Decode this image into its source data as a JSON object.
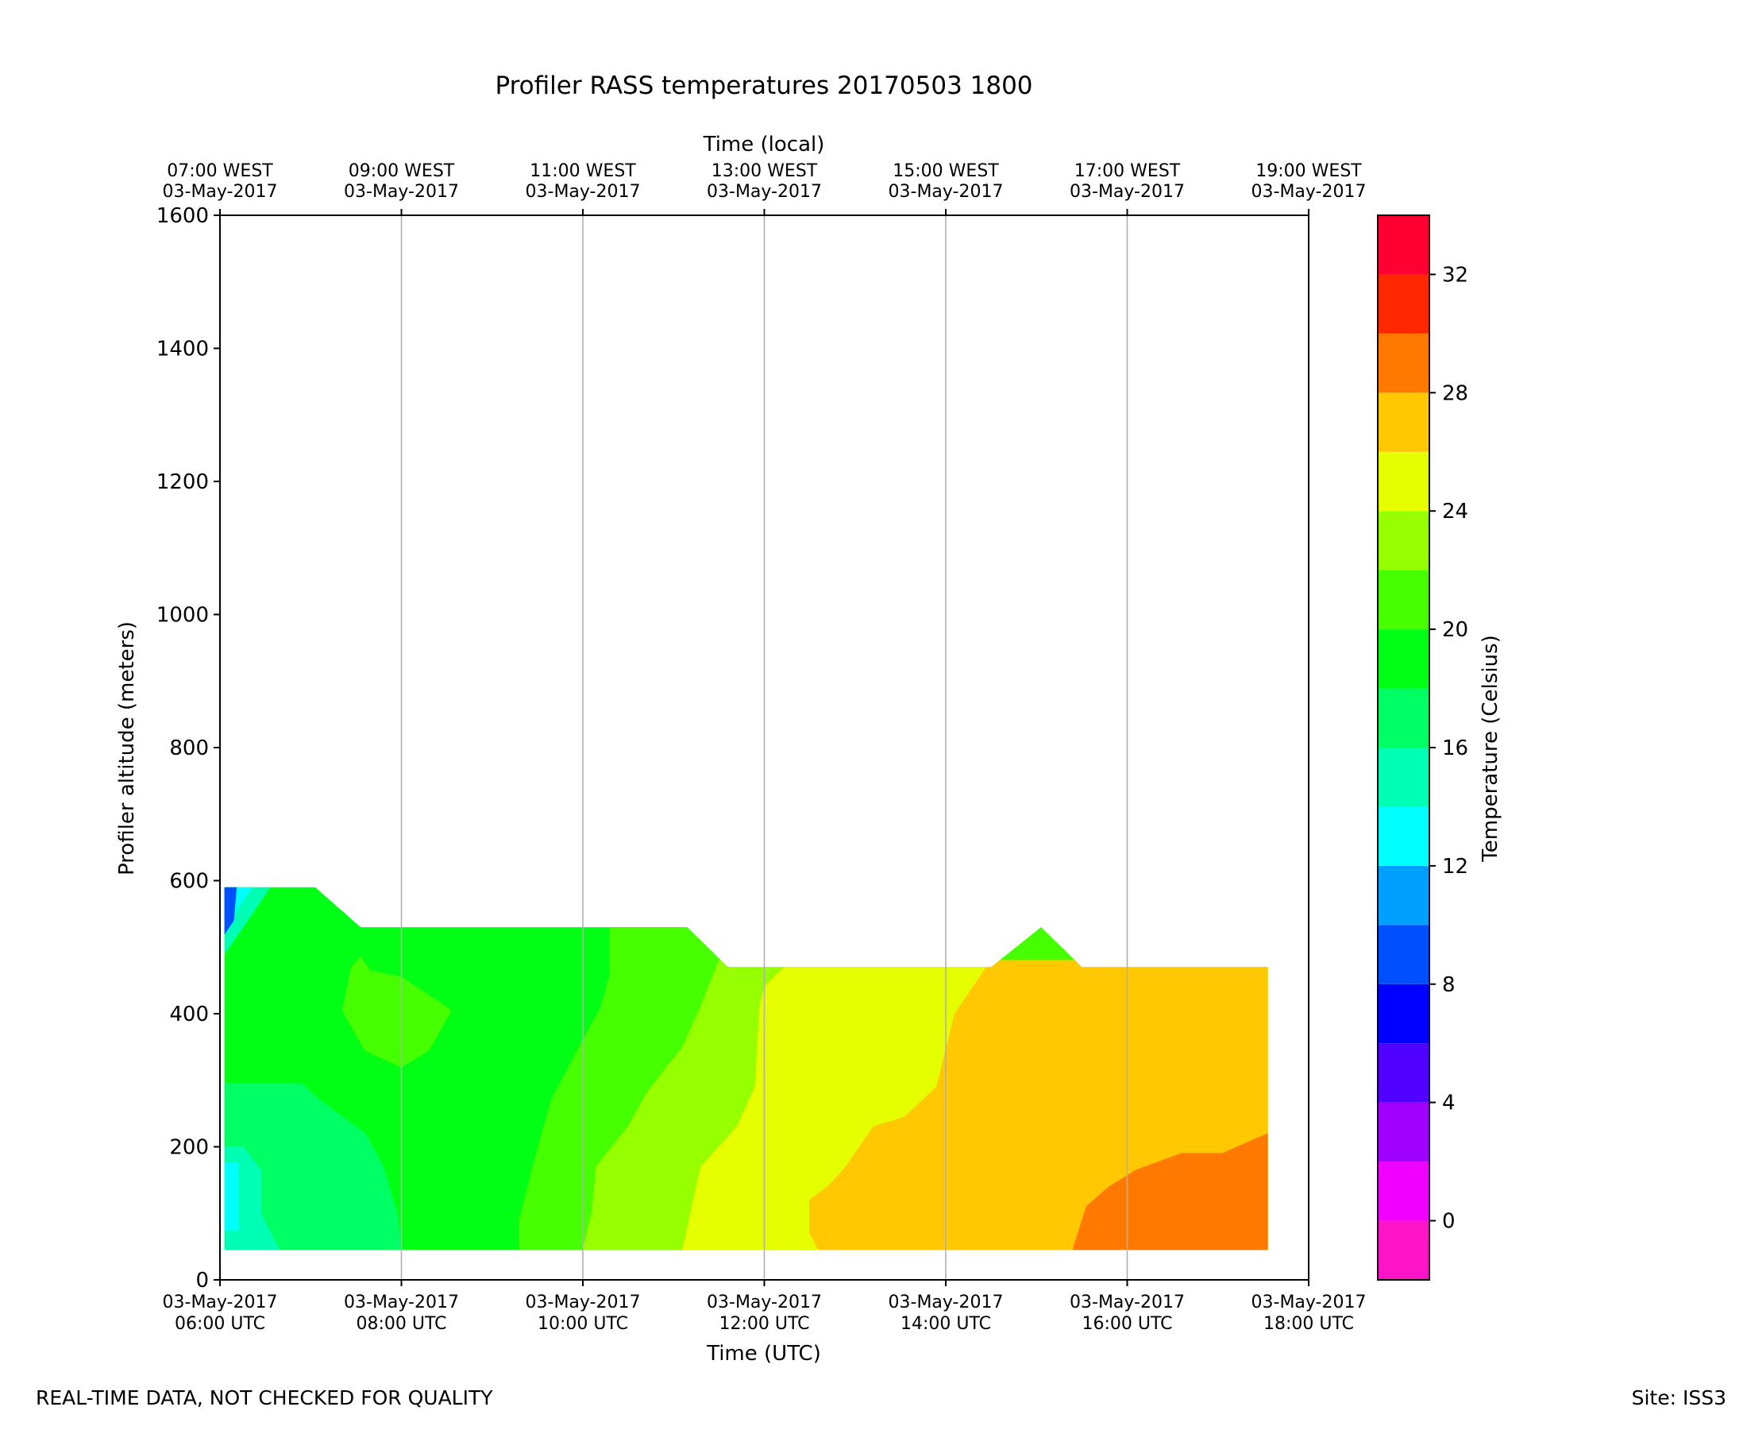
{
  "chart_data": {
    "type": "contour",
    "title": "Profiler RASS temperatures 20170503 1800",
    "xlabel": "Time (UTC)",
    "xlabel_top": "Time (local)",
    "ylabel": "Profiler altitude (meters)",
    "colorbar_label": "Temperature (Celsius)",
    "x_range_hours_utc": [
      6,
      18
    ],
    "ylim": [
      0,
      1600
    ],
    "y_ticks": [
      0,
      200,
      400,
      600,
      800,
      1000,
      1200,
      1400,
      1600
    ],
    "y_tick_labels": [
      "0",
      "200",
      "400",
      "600",
      "800",
      "1000",
      "1200",
      "1400",
      "1600"
    ],
    "x_ticks_hours": [
      6,
      8,
      10,
      12,
      14,
      16,
      18
    ],
    "x_tick_labels_bottom": [
      {
        "date": "03-May-2017",
        "time": "06:00 UTC"
      },
      {
        "date": "03-May-2017",
        "time": "08:00 UTC"
      },
      {
        "date": "03-May-2017",
        "time": "10:00 UTC"
      },
      {
        "date": "03-May-2017",
        "time": "12:00 UTC"
      },
      {
        "date": "03-May-2017",
        "time": "14:00 UTC"
      },
      {
        "date": "03-May-2017",
        "time": "16:00 UTC"
      },
      {
        "date": "03-May-2017",
        "time": "18:00 UTC"
      }
    ],
    "x_tick_labels_top": [
      {
        "time": "07:00 WEST",
        "date": "03-May-2017"
      },
      {
        "time": "09:00 WEST",
        "date": "03-May-2017"
      },
      {
        "time": "11:00 WEST",
        "date": "03-May-2017"
      },
      {
        "time": "13:00 WEST",
        "date": "03-May-2017"
      },
      {
        "time": "15:00 WEST",
        "date": "03-May-2017"
      },
      {
        "time": "17:00 WEST",
        "date": "03-May-2017"
      },
      {
        "time": "19:00 WEST",
        "date": "03-May-2017"
      }
    ],
    "grid": "vertical",
    "colorbar": {
      "vmin": -2,
      "vmax": 34,
      "step": 2,
      "colors": [
        "#ff14c8",
        "#f000ff",
        "#a000ff",
        "#5000ff",
        "#0000ff",
        "#0050ff",
        "#00a0ff",
        "#00ffff",
        "#00ffb4",
        "#00ff64",
        "#00ff14",
        "#46ff00",
        "#96ff00",
        "#e6ff00",
        "#ffc800",
        "#ff7800",
        "#ff2800",
        "#ff0032"
      ],
      "ticks": [
        0,
        4,
        8,
        12,
        16,
        20,
        24,
        28,
        32
      ],
      "tick_labels": [
        "0",
        "4",
        "8",
        "12",
        "16",
        "20",
        "24",
        "28",
        "32"
      ]
    },
    "regions": [
      {
        "temp_range": [
          18,
          20
        ],
        "color": "#00ff14",
        "polygon": [
          [
            6.05,
            45
          ],
          [
            18.45,
            45
          ],
          [
            18.45,
            590
          ],
          [
            6.05,
            590
          ]
        ]
      },
      {
        "temp_range": [
          16,
          18
        ],
        "color": "#00ff64",
        "polygon": [
          [
            6.05,
            45
          ],
          [
            8.0,
            45
          ],
          [
            7.95,
            100
          ],
          [
            7.8,
            170
          ],
          [
            7.6,
            220
          ],
          [
            7.3,
            250
          ],
          [
            7.1,
            270
          ],
          [
            6.9,
            295
          ],
          [
            6.05,
            295
          ]
        ]
      },
      {
        "temp_range": [
          14,
          16
        ],
        "color": "#00ffb4",
        "polygon": [
          [
            6.05,
            45
          ],
          [
            6.65,
            45
          ],
          [
            6.45,
            100
          ],
          [
            6.45,
            165
          ],
          [
            6.25,
            200
          ],
          [
            6.05,
            200
          ]
        ]
      },
      {
        "temp_range": [
          12,
          14
        ],
        "color": "#00ffff",
        "polygon": [
          [
            6.05,
            75
          ],
          [
            6.2,
            75
          ],
          [
            6.2,
            175
          ],
          [
            6.05,
            175
          ]
        ]
      },
      {
        "temp_range": [
          14,
          16
        ],
        "color": "#00ffb4",
        "polygon": [
          [
            6.05,
            490
          ],
          [
            6.3,
            540
          ],
          [
            6.55,
            590
          ],
          [
            6.05,
            590
          ]
        ]
      },
      {
        "temp_range": [
          12,
          14
        ],
        "color": "#00ffff",
        "polygon": [
          [
            6.05,
            520
          ],
          [
            6.2,
            560
          ],
          [
            6.35,
            590
          ],
          [
            6.05,
            590
          ]
        ]
      },
      {
        "temp_range": [
          10,
          12
        ],
        "color": "#00a0ff",
        "polygon": [
          [
            6.05,
            545
          ],
          [
            6.18,
            590
          ],
          [
            6.05,
            590
          ]
        ]
      },
      {
        "temp_range": [
          8,
          10
        ],
        "color": "#0050ff",
        "polygon": [
          [
            6.05,
            520
          ],
          [
            6.15,
            540
          ],
          [
            6.18,
            590
          ],
          [
            6.05,
            590
          ]
        ]
      },
      {
        "temp_range": [
          20,
          22
        ],
        "color": "#46ff00",
        "polygon": [
          [
            7.35,
            405
          ],
          [
            7.45,
            470
          ],
          [
            7.55,
            485
          ],
          [
            7.65,
            465
          ],
          [
            8.0,
            455
          ],
          [
            8.55,
            405
          ],
          [
            8.3,
            345
          ],
          [
            8.0,
            320
          ],
          [
            7.6,
            345
          ]
        ]
      },
      {
        "temp_range": [
          20,
          22
        ],
        "color": "#46ff00",
        "polygon": [
          [
            9.3,
            45
          ],
          [
            18.45,
            45
          ],
          [
            18.45,
            530
          ],
          [
            10.3,
            530
          ],
          [
            10.3,
            460
          ],
          [
            10.2,
            410
          ],
          [
            10.0,
            360
          ],
          [
            9.65,
            270
          ],
          [
            9.45,
            170
          ],
          [
            9.3,
            90
          ]
        ]
      },
      {
        "temp_range": [
          22,
          24
        ],
        "color": "#96ff00",
        "polygon": [
          [
            10.0,
            45
          ],
          [
            18.45,
            45
          ],
          [
            18.45,
            480
          ],
          [
            11.5,
            480
          ],
          [
            11.3,
            410
          ],
          [
            11.1,
            350
          ],
          [
            10.7,
            280
          ],
          [
            10.5,
            230
          ],
          [
            10.15,
            170
          ],
          [
            10.1,
            100
          ]
        ]
      },
      {
        "temp_range": [
          24,
          26
        ],
        "color": "#e6ff00",
        "polygon": [
          [
            11.1,
            45
          ],
          [
            18.45,
            45
          ],
          [
            18.45,
            480
          ],
          [
            12.3,
            480
          ],
          [
            12.0,
            440
          ],
          [
            11.95,
            410
          ],
          [
            11.9,
            290
          ],
          [
            11.7,
            230
          ],
          [
            11.5,
            200
          ],
          [
            11.3,
            170
          ]
        ]
      },
      {
        "temp_range": [
          26,
          28
        ],
        "color": "#ffc800",
        "polygon": [
          [
            12.6,
            45
          ],
          [
            18.45,
            45
          ],
          [
            18.45,
            480
          ],
          [
            14.5,
            480
          ],
          [
            14.3,
            440
          ],
          [
            14.1,
            400
          ],
          [
            13.9,
            290
          ],
          [
            13.55,
            245
          ],
          [
            13.2,
            230
          ],
          [
            12.9,
            170
          ],
          [
            12.7,
            140
          ],
          [
            12.5,
            120
          ],
          [
            12.5,
            70
          ]
        ]
      },
      {
        "temp_range": [
          28,
          30
        ],
        "color": "#ff7800",
        "polygon": [
          [
            15.4,
            45
          ],
          [
            17.55,
            45
          ],
          [
            17.55,
            220
          ],
          [
            17.05,
            190
          ],
          [
            16.6,
            190
          ],
          [
            16.1,
            165
          ],
          [
            15.8,
            140
          ],
          [
            15.55,
            110
          ]
        ]
      }
    ],
    "clip_outline_utc_m": [
      [
        6.05,
        45
      ],
      [
        17.55,
        45
      ],
      [
        17.55,
        470
      ],
      [
        15.5,
        470
      ],
      [
        15.05,
        530
      ],
      [
        14.5,
        470
      ],
      [
        11.6,
        470
      ],
      [
        11.15,
        530
      ],
      [
        8.0,
        530
      ],
      [
        7.55,
        530
      ],
      [
        7.05,
        590
      ],
      [
        6.05,
        590
      ]
    ]
  },
  "footer": {
    "left": "REAL-TIME DATA, NOT CHECKED FOR QUALITY",
    "right": "Site: ISS3"
  }
}
